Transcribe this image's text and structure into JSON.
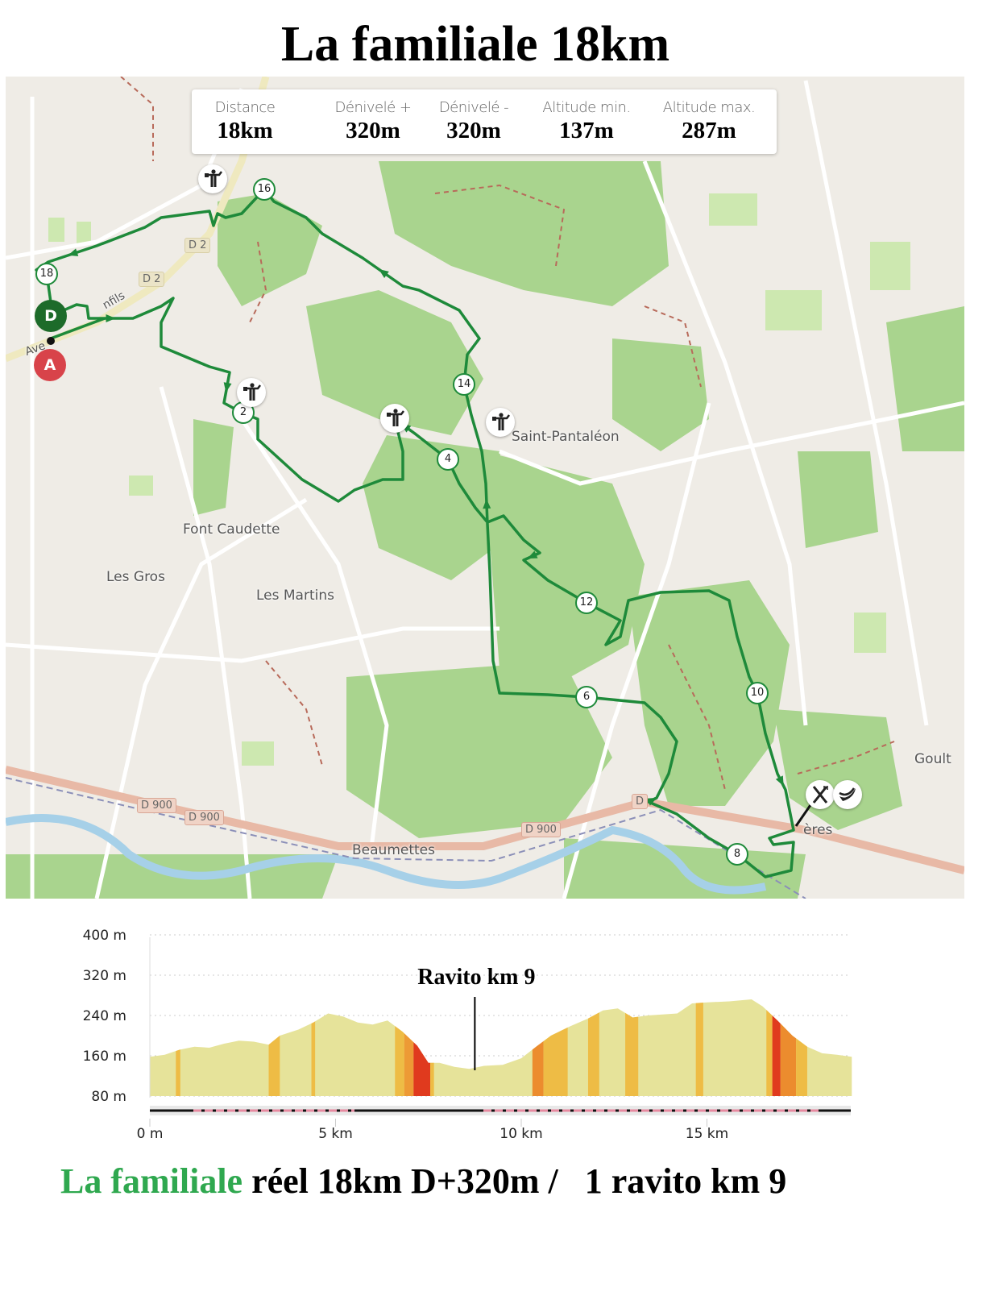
{
  "title": "La familiale 18km",
  "stats": [
    {
      "label": "Distance",
      "value": "18km"
    },
    {
      "label": "Dénivelé +",
      "value": "320m"
    },
    {
      "label": "Dénivelé -",
      "value": "320m"
    },
    {
      "label": "Altitude min.",
      "value": "137m"
    },
    {
      "label": "Altitude max.",
      "value": "287m"
    }
  ],
  "map": {
    "colors": {
      "route": "#1e8a3a",
      "forest": "#a9d48e",
      "background": "#efece6",
      "river": "#a6d0e8",
      "main_road": "#e8b9a6",
      "start": "#1d6b2a",
      "finish": "#d8434a"
    },
    "places": [
      "Saint-Pantaléon",
      "Font Caudette",
      "Les Gros",
      "Les Martins",
      "Beaumettes",
      "Goult",
      "ères",
      "Ave",
      "nfils"
    ],
    "roads": [
      "D 2",
      "D 2",
      "D 900",
      "D 900",
      "D 900",
      "D"
    ],
    "start_label": "D",
    "finish_label": "A",
    "km_markers": [
      "2",
      "4",
      "6",
      "8",
      "10",
      "12",
      "14",
      "16",
      "18"
    ],
    "poi_icons": [
      "volunteer-icon",
      "volunteer-icon",
      "volunteer-icon",
      "volunteer-icon",
      "fork-knife-icon",
      "banana-icon"
    ]
  },
  "chart_data": {
    "type": "area",
    "title": "",
    "annotation": "Ravito km 9",
    "annotation_x_km": 8.75,
    "xlabel": "",
    "ylabel": "",
    "xlim": [
      0,
      18.9
    ],
    "ylim": [
      80,
      400
    ],
    "x_ticks": [
      "0 m",
      "5 km",
      "10 km",
      "15 km"
    ],
    "x_tick_values": [
      0,
      5,
      10,
      15
    ],
    "y_ticks": [
      "400 m",
      "320 m",
      "240 m",
      "160 m",
      "80 m"
    ],
    "y_tick_values": [
      400,
      320,
      240,
      160,
      80
    ],
    "grid": "horizontal dotted",
    "x": [
      0,
      0.4,
      0.8,
      1.2,
      1.6,
      2.0,
      2.4,
      2.8,
      3.2,
      3.5,
      4.0,
      4.4,
      4.8,
      5.2,
      5.6,
      6.0,
      6.4,
      6.8,
      7.2,
      7.5,
      7.8,
      8.2,
      8.6,
      9.0,
      9.5,
      10.0,
      10.4,
      10.8,
      11.3,
      11.8,
      12.2,
      12.6,
      13.0,
      13.4,
      13.8,
      14.2,
      14.6,
      15.0,
      15.6,
      16.2,
      16.5,
      16.9,
      17.3,
      17.7,
      18.1,
      18.5,
      18.9
    ],
    "y": [
      158,
      162,
      172,
      178,
      176,
      184,
      190,
      188,
      182,
      200,
      212,
      226,
      244,
      238,
      226,
      222,
      230,
      208,
      180,
      146,
      146,
      138,
      134,
      140,
      142,
      155,
      178,
      200,
      218,
      234,
      250,
      254,
      236,
      240,
      242,
      244,
      264,
      266,
      268,
      272,
      258,
      230,
      200,
      178,
      165,
      162,
      158
    ],
    "slope_bands": [
      {
        "from": 0.7,
        "to": 0.82,
        "color": "#eebc45"
      },
      {
        "from": 3.2,
        "to": 3.5,
        "color": "#eebc45"
      },
      {
        "from": 4.35,
        "to": 4.45,
        "color": "#eebc45"
      },
      {
        "from": 6.6,
        "to": 6.85,
        "color": "#eebc45"
      },
      {
        "from": 6.85,
        "to": 7.1,
        "color": "#ed9a35"
      },
      {
        "from": 7.1,
        "to": 7.55,
        "color": "#e03a1e"
      },
      {
        "from": 7.55,
        "to": 7.65,
        "color": "#eebc45"
      },
      {
        "from": 10.3,
        "to": 10.6,
        "color": "#ec8c2e"
      },
      {
        "from": 10.6,
        "to": 11.25,
        "color": "#eebc45"
      },
      {
        "from": 11.8,
        "to": 12.1,
        "color": "#eebc45"
      },
      {
        "from": 12.8,
        "to": 13.15,
        "color": "#eebc45"
      },
      {
        "from": 14.7,
        "to": 14.9,
        "color": "#eebc45"
      },
      {
        "from": 16.6,
        "to": 16.76,
        "color": "#eebc45"
      },
      {
        "from": 16.76,
        "to": 16.98,
        "color": "#e03a1e"
      },
      {
        "from": 16.98,
        "to": 17.4,
        "color": "#ec8c2e"
      },
      {
        "from": 17.4,
        "to": 17.7,
        "color": "#eebc45"
      }
    ],
    "fill_color": "#e6e39a"
  },
  "footer": {
    "highlight": "La familiale",
    "rest": " réel 18km D+320m /   1 ravito km 9",
    "highlight_color": "#2fa84f"
  }
}
